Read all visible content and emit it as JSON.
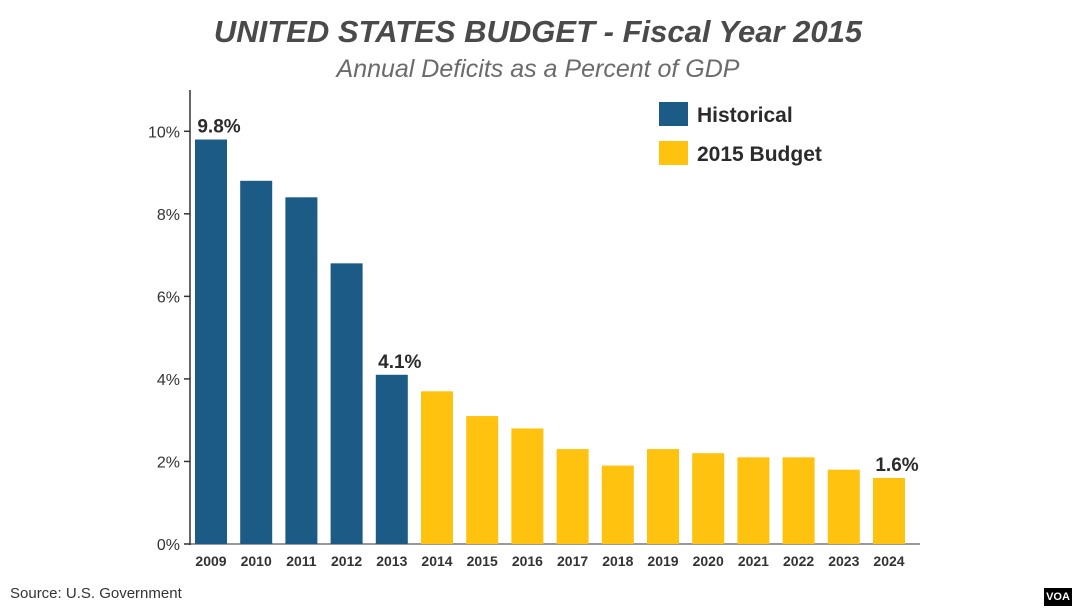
{
  "chart_data": {
    "type": "bar",
    "title": "UNITED STATES BUDGET - Fiscal Year 2015",
    "subtitle": "Annual Deficits as a Percent of GDP",
    "xlabel": "",
    "ylabel": "",
    "ylim": [
      0,
      11
    ],
    "yticks": [
      0,
      2,
      4,
      6,
      8,
      10
    ],
    "ytick_labels": [
      "0%",
      "2%",
      "4%",
      "6%",
      "8%",
      "10%"
    ],
    "grid": false,
    "legend_position": "top-right",
    "categories": [
      "2009",
      "2010",
      "2011",
      "2012",
      "2013",
      "2014",
      "2015",
      "2016",
      "2017",
      "2018",
      "2019",
      "2020",
      "2021",
      "2022",
      "2023",
      "2024"
    ],
    "series": [
      {
        "name": "Historical",
        "color": "#1b5b86",
        "values": [
          9.8,
          8.8,
          8.4,
          6.8,
          4.1,
          null,
          null,
          null,
          null,
          null,
          null,
          null,
          null,
          null,
          null,
          null
        ]
      },
      {
        "name": "2015 Budget",
        "color": "#ffc20e",
        "values": [
          null,
          null,
          null,
          null,
          null,
          3.7,
          3.1,
          2.8,
          2.3,
          1.9,
          2.3,
          2.2,
          2.1,
          2.1,
          1.8,
          1.6
        ]
      }
    ],
    "annotations": [
      {
        "category": "2009",
        "text": "9.8%"
      },
      {
        "category": "2013",
        "text": "4.1%"
      },
      {
        "category": "2024",
        "text": "1.6%"
      }
    ]
  },
  "footer": {
    "source": "Source: U.S. Government",
    "badge": "VOA"
  }
}
